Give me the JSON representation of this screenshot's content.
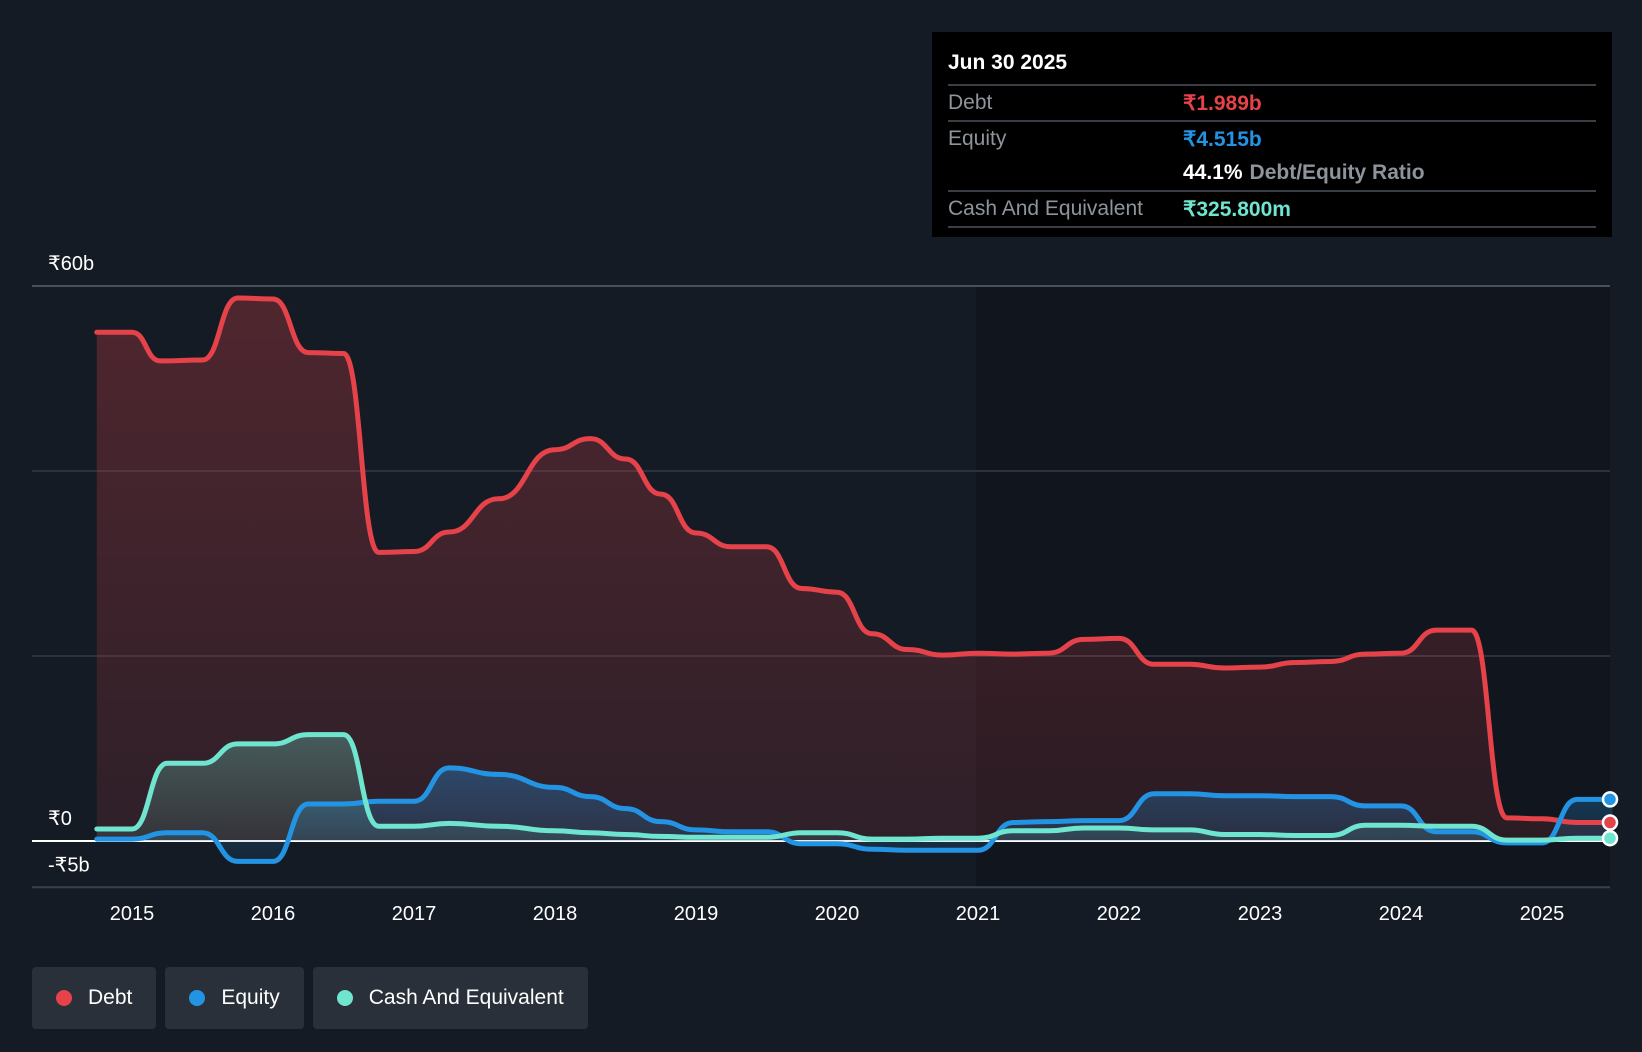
{
  "tooltip": {
    "date": "Jun 30 2025",
    "debt_label": "Debt",
    "debt_value": "₹1.989b",
    "equity_label": "Equity",
    "equity_value": "₹4.515b",
    "ratio_value": "44.1%",
    "ratio_label": "Debt/Equity Ratio",
    "cash_label": "Cash And Equivalent",
    "cash_value": "₹325.800m"
  },
  "legend": [
    {
      "label": "Debt",
      "color": "#e5424a"
    },
    {
      "label": "Equity",
      "color": "#2394e3"
    },
    {
      "label": "Cash And Equivalent",
      "color": "#6fe4cf"
    }
  ],
  "chart_data": {
    "type": "area",
    "ylim": [
      -5,
      60
    ],
    "y_tick_labels": [
      {
        "value": 60,
        "label": "₹60b"
      },
      {
        "value": 0,
        "label": "₹0"
      },
      {
        "value": -5,
        "label": "-₹5b"
      }
    ],
    "gridlines": [
      20,
      40,
      60
    ],
    "xlim": [
      2014.7,
      2025.5
    ],
    "x_ticks": [
      2015,
      2016,
      2017,
      2018,
      2019,
      2020,
      2021,
      2022,
      2023,
      2024,
      2025
    ],
    "x_tick_labels": [
      "2015",
      "2016",
      "2017",
      "2018",
      "2019",
      "2020",
      "2021",
      "2022",
      "2023",
      "2024",
      "2025"
    ],
    "series": [
      {
        "name": "Debt",
        "color": "#e5424a",
        "x": [
          2014.75,
          2015.0,
          2015.2,
          2015.5,
          2015.75,
          2016.0,
          2016.25,
          2016.5,
          2016.75,
          2017.0,
          2017.25,
          2017.6,
          2018.0,
          2018.25,
          2018.5,
          2018.75,
          2019.0,
          2019.25,
          2019.5,
          2019.75,
          2020.0,
          2020.25,
          2020.5,
          2020.75,
          2021.0,
          2021.25,
          2021.5,
          2021.75,
          2022.0,
          2022.25,
          2022.5,
          2022.75,
          2023.0,
          2023.25,
          2023.5,
          2023.75,
          2024.0,
          2024.25,
          2024.5,
          2024.75,
          2025.0,
          2025.25,
          2025.5
        ],
        "y": [
          55.0,
          55.0,
          51.9,
          52.0,
          58.7,
          58.6,
          52.8,
          52.7,
          31.2,
          31.3,
          33.4,
          37.0,
          42.3,
          43.5,
          41.3,
          37.5,
          33.3,
          31.8,
          31.8,
          27.3,
          26.9,
          22.4,
          20.7,
          20.1,
          20.3,
          20.2,
          20.3,
          21.8,
          21.9,
          19.1,
          19.1,
          18.7,
          18.8,
          19.3,
          19.4,
          20.2,
          20.3,
          22.8,
          22.8,
          2.5,
          2.4,
          2.0,
          2.0
        ]
      },
      {
        "name": "Equity",
        "color": "#2394e3",
        "x": [
          2014.75,
          2015.0,
          2015.25,
          2015.5,
          2015.75,
          2016.0,
          2016.25,
          2016.5,
          2016.75,
          2017.0,
          2017.25,
          2017.6,
          2018.0,
          2018.25,
          2018.5,
          2018.75,
          2019.0,
          2019.25,
          2019.5,
          2019.75,
          2020.0,
          2020.25,
          2020.5,
          2020.75,
          2021.0,
          2021.25,
          2021.5,
          2021.75,
          2022.0,
          2022.25,
          2022.5,
          2022.75,
          2023.0,
          2023.25,
          2023.5,
          2023.75,
          2024.0,
          2024.25,
          2024.5,
          2024.75,
          2025.0,
          2025.25,
          2025.5
        ],
        "y": [
          0.2,
          0.2,
          0.9,
          0.9,
          -2.2,
          -2.2,
          4.0,
          4.0,
          4.3,
          4.3,
          7.9,
          7.2,
          5.8,
          4.8,
          3.5,
          2.1,
          1.2,
          1.0,
          1.0,
          -0.3,
          -0.3,
          -0.9,
          -1.0,
          -1.0,
          -1.0,
          2.0,
          2.1,
          2.2,
          2.2,
          5.1,
          5.1,
          4.9,
          4.9,
          4.8,
          4.8,
          3.8,
          3.8,
          1.0,
          1.0,
          -0.2,
          -0.2,
          4.5,
          4.5
        ]
      },
      {
        "name": "Cash And Equivalent",
        "color": "#6fe4cf",
        "x": [
          2014.75,
          2015.0,
          2015.25,
          2015.5,
          2015.75,
          2016.0,
          2016.25,
          2016.5,
          2016.75,
          2017.0,
          2017.25,
          2017.6,
          2018.0,
          2018.25,
          2018.5,
          2018.75,
          2019.0,
          2019.25,
          2019.5,
          2019.75,
          2020.0,
          2020.25,
          2020.5,
          2020.75,
          2021.0,
          2021.25,
          2021.5,
          2021.75,
          2022.0,
          2022.25,
          2022.5,
          2022.75,
          2023.0,
          2023.25,
          2023.5,
          2023.75,
          2024.0,
          2024.25,
          2024.5,
          2024.75,
          2025.0,
          2025.25,
          2025.5
        ],
        "y": [
          1.3,
          1.3,
          8.4,
          8.4,
          10.5,
          10.5,
          11.5,
          11.5,
          1.6,
          1.6,
          1.9,
          1.6,
          1.1,
          0.9,
          0.7,
          0.5,
          0.4,
          0.4,
          0.4,
          0.9,
          0.9,
          0.2,
          0.2,
          0.3,
          0.3,
          1.1,
          1.1,
          1.4,
          1.4,
          1.2,
          1.2,
          0.7,
          0.7,
          0.6,
          0.6,
          1.7,
          1.7,
          1.6,
          1.6,
          0.1,
          0.1,
          0.3,
          0.3
        ]
      }
    ]
  }
}
